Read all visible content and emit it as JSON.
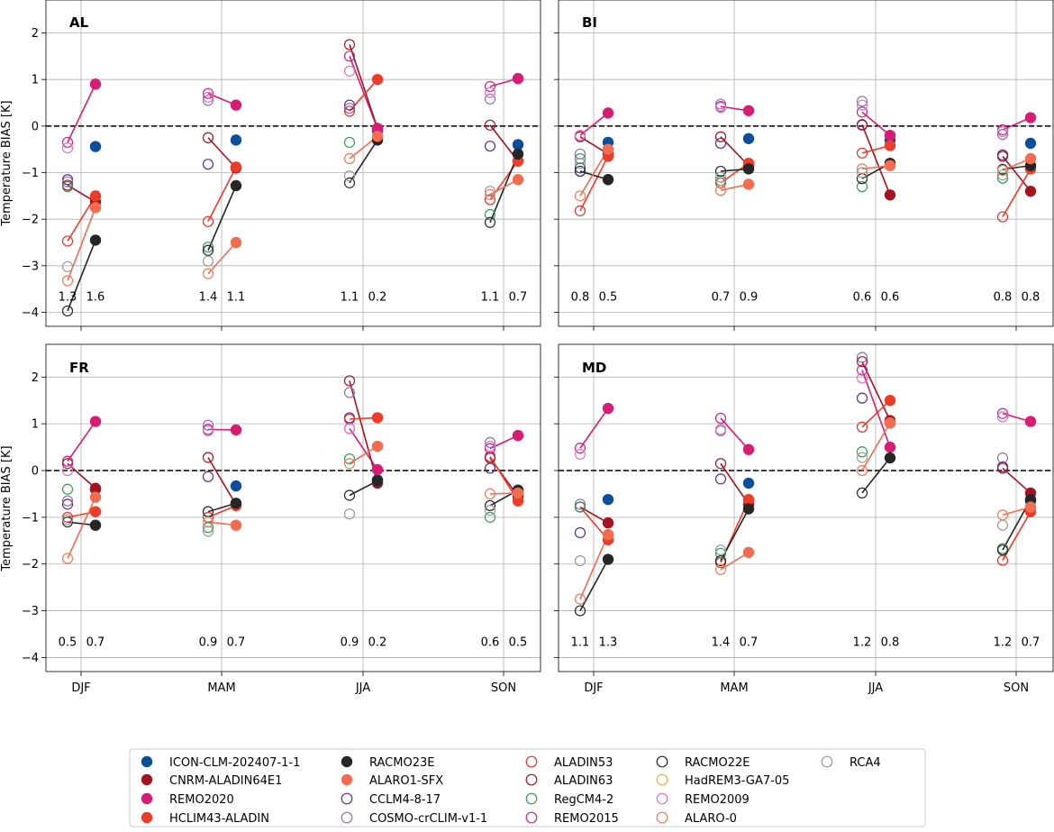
{
  "chart_data": {
    "type": "scatter",
    "ylabel": "Temperature BIAS [K]",
    "ylim": [
      -4.3,
      2.7
    ],
    "yticks": [
      -4,
      -3,
      -2,
      -1,
      0,
      1,
      2
    ],
    "grid": true,
    "reference_line": 0,
    "seasons": [
      "DJF",
      "MAM",
      "JJA",
      "SON"
    ],
    "legend_placement": "bottom-center",
    "models": [
      {
        "name": "ICON-CLM-202407-1-1",
        "color": "#0b4f9c",
        "filled": true
      },
      {
        "name": "CNRM-ALADIN64E1",
        "color": "#a31420",
        "filled": true
      },
      {
        "name": "REMO2020",
        "color": "#d81b74",
        "filled": true
      },
      {
        "name": "HCLIM43-ALADIN",
        "color": "#ee3c28",
        "filled": true
      },
      {
        "name": "RACMO23E",
        "color": "#262626",
        "filled": true
      },
      {
        "name": "ALARO1-SFX",
        "color": "#f56b4f",
        "filled": true
      },
      {
        "name": "CCLM4-8-17",
        "color": "#5a2a8a",
        "filled": false
      },
      {
        "name": "COSMO-crCLIM-v1-1",
        "color": "#8e6db3",
        "filled": false
      },
      {
        "name": "ALADIN53",
        "color": "#e0342c",
        "filled": false
      },
      {
        "name": "ALADIN63",
        "color": "#a31420",
        "filled": false
      },
      {
        "name": "RegCM4-2",
        "color": "#2e9e53",
        "filled": false
      },
      {
        "name": "REMO2015",
        "color": "#c7238a",
        "filled": false
      },
      {
        "name": "RACMO22E",
        "color": "#262626",
        "filled": false
      },
      {
        "name": "HadREM3-GA7-05",
        "color": "#f4a73d",
        "filled": false
      },
      {
        "name": "REMO2009",
        "color": "#e270c2",
        "filled": false
      },
      {
        "name": "ALARO-0",
        "color": "#f07a5a",
        "filled": false
      },
      {
        "name": "RCA4",
        "color": "#999999",
        "filled": false
      }
    ],
    "links": [
      {
        "from": "REMO2015",
        "to": "REMO2020"
      },
      {
        "from": "ALADIN63",
        "to": "CNRM-ALADIN64E1"
      },
      {
        "from": "ALADIN53",
        "to": "HCLIM43-ALADIN"
      },
      {
        "from": "RACMO22E",
        "to": "RACMO23E"
      },
      {
        "from": "ALARO-0",
        "to": "ALARO1-SFX"
      }
    ],
    "panels": [
      {
        "title": "AL",
        "stats": [
          [
            "1.3",
            "1.6"
          ],
          [
            "1.4",
            "1.1"
          ],
          [
            "1.1",
            "0.2"
          ],
          [
            "1.1",
            "0.7"
          ]
        ],
        "old": {
          "CCLM4-8-17": [
            -1.15,
            -0.82,
            0.45,
            -0.43
          ],
          "COSMO-crCLIM-v1-1": [
            -1.2,
            0.55,
            0.38,
            0.58
          ],
          "ALADIN53": [
            -2.47,
            -2.05,
            0.32,
            -1.58
          ],
          "ALADIN63": [
            -1.27,
            -0.25,
            1.75,
            0.02
          ],
          "RegCM4-2": [
            -1.3,
            -2.6,
            -0.35,
            -1.9
          ],
          "REMO2015": [
            -0.35,
            0.7,
            1.5,
            0.85
          ],
          "RACMO22E": [
            -3.97,
            -2.67,
            -1.22,
            -2.07
          ],
          "REMO2009": [
            -0.47,
            0.62,
            1.18,
            0.72
          ],
          "ALARO-0": [
            -3.32,
            -3.17,
            -0.7,
            -1.47
          ],
          "RCA4": [
            -3.02,
            -2.9,
            -1.07,
            -1.4
          ]
        },
        "new": {
          "ICON-CLM-202407-1-1": [
            -0.44,
            -0.3,
            -0.1,
            -0.4
          ],
          "CNRM-ALADIN64E1": [
            -1.63,
            -0.9,
            -0.05,
            -0.75
          ],
          "REMO2020": [
            0.9,
            0.45,
            -0.05,
            1.02
          ],
          "HCLIM43-ALADIN": [
            -1.5,
            -0.88,
            1.0,
            -0.75
          ],
          "RACMO23E": [
            -2.45,
            -1.28,
            -0.3,
            -0.6
          ],
          "ALARO1-SFX": [
            -1.75,
            -2.5,
            -0.22,
            -1.15
          ]
        }
      },
      {
        "title": "BI",
        "stats": [
          [
            "0.8",
            "0.5"
          ],
          [
            "0.7",
            "0.9"
          ],
          [
            "0.6",
            "0.6"
          ],
          [
            "0.8",
            "0.8"
          ]
        ],
        "old": {
          "CCLM4-8-17": [
            -0.9,
            -0.37,
            0.02,
            -0.62
          ],
          "COSMO-crCLIM-v1-1": [
            -0.6,
            0.47,
            0.53,
            -0.18
          ],
          "ALADIN53": [
            -1.82,
            -1.22,
            -0.58,
            -1.95
          ],
          "ALADIN63": [
            -0.23,
            -0.23,
            0.03,
            -0.65
          ],
          "RegCM4-2": [
            -0.7,
            -1.17,
            -1.3,
            -1.12
          ],
          "REMO2015": [
            -0.2,
            0.42,
            0.3,
            -0.08
          ],
          "RACMO22E": [
            -0.97,
            -0.97,
            -1.13,
            -0.93
          ],
          "REMO2009": [
            -0.2,
            0.4,
            0.45,
            -0.12
          ],
          "ALARO-0": [
            -1.5,
            -1.38,
            -0.92,
            -0.95
          ],
          "RCA4": [
            -0.8,
            -1.1,
            -1.0,
            -1.05
          ]
        },
        "new": {
          "ICON-CLM-202407-1-1": [
            -0.35,
            -0.27,
            -0.3,
            -0.37
          ],
          "CNRM-ALADIN64E1": [
            -0.6,
            -0.85,
            -1.48,
            -1.4
          ],
          "REMO2020": [
            0.28,
            0.33,
            -0.2,
            0.18
          ],
          "HCLIM43-ALADIN": [
            -0.65,
            -0.8,
            -0.42,
            -0.92
          ],
          "RACMO23E": [
            -1.15,
            -0.92,
            -0.8,
            -0.85
          ],
          "ALARO1-SFX": [
            -0.5,
            -1.25,
            -0.85,
            -0.7
          ]
        }
      },
      {
        "title": "FR",
        "stats": [
          [
            "0.5",
            "0.7"
          ],
          [
            "0.9",
            "0.7"
          ],
          [
            "0.9",
            "0.2"
          ],
          [
            "0.6",
            "0.5"
          ]
        ],
        "old": {
          "CCLM4-8-17": [
            -0.72,
            -0.13,
            1.13,
            0.05
          ],
          "COSMO-crCLIM-v1-1": [
            -0.65,
            0.97,
            1.67,
            0.6
          ],
          "ALADIN53": [
            -1.0,
            -1.0,
            1.1,
            0.3
          ],
          "ALADIN63": [
            0.15,
            0.28,
            1.92,
            0.27
          ],
          "RegCM4-2": [
            -0.4,
            -1.22,
            0.25,
            -1.0
          ],
          "REMO2015": [
            0.2,
            0.88,
            0.9,
            0.47
          ],
          "RACMO22E": [
            -1.1,
            -0.88,
            -0.53,
            -0.75
          ],
          "REMO2009": [
            0.0,
            0.85,
            0.9,
            0.52
          ],
          "ALARO-0": [
            -1.88,
            -1.1,
            0.15,
            -0.5
          ],
          "RCA4": [
            -1.05,
            -1.3,
            -0.93,
            -0.85
          ]
        },
        "new": {
          "ICON-CLM-202407-1-1": [
            -0.4,
            -0.33,
            -0.2,
            -0.42
          ],
          "CNRM-ALADIN64E1": [
            -0.38,
            -0.73,
            -0.27,
            -0.55
          ],
          "REMO2020": [
            1.05,
            0.87,
            0.02,
            0.75
          ],
          "HCLIM43-ALADIN": [
            -0.88,
            -0.75,
            1.13,
            -0.65
          ],
          "RACMO23E": [
            -1.17,
            -0.7,
            -0.22,
            -0.42
          ],
          "ALARO1-SFX": [
            -0.57,
            -1.17,
            0.52,
            -0.48
          ]
        }
      },
      {
        "title": "MD",
        "stats": [
          [
            "1.1",
            "1.3"
          ],
          [
            "1.4",
            "0.7"
          ],
          [
            "1.2",
            "0.8"
          ],
          [
            "1.2",
            "0.7"
          ]
        ],
        "old": {
          "CCLM4-8-17": [
            -1.33,
            -0.18,
            1.55,
            0.08
          ],
          "COSMO-crCLIM-v1-1": [
            -0.72,
            0.85,
            2.42,
            0.27
          ],
          "ALADIN53": [
            -0.78,
            -1.97,
            0.93,
            -1.92
          ],
          "ALADIN63": [
            -0.78,
            0.15,
            2.33,
            0.05
          ],
          "RegCM4-2": [
            -0.78,
            -1.77,
            0.4,
            -1.67
          ],
          "REMO2015": [
            0.48,
            1.12,
            2.15,
            1.22
          ],
          "RACMO22E": [
            -3.0,
            -1.93,
            -0.48,
            -1.7
          ],
          "REMO2009": [
            0.35,
            0.88,
            1.98,
            1.15
          ],
          "ALARO-0": [
            -2.75,
            -2.12,
            0.0,
            -0.95
          ],
          "RCA4": [
            -1.93,
            -1.7,
            0.28,
            -1.17
          ]
        },
        "new": {
          "ICON-CLM-202407-1-1": [
            -0.62,
            -0.27,
            1.02,
            -0.65
          ],
          "CNRM-ALADIN64E1": [
            -1.12,
            -0.72,
            1.07,
            -0.48
          ],
          "REMO2020": [
            1.33,
            0.45,
            0.5,
            1.05
          ],
          "HCLIM43-ALADIN": [
            -1.48,
            -0.62,
            1.5,
            -0.88
          ],
          "RACMO23E": [
            -1.9,
            -0.82,
            0.27,
            -0.62
          ],
          "ALARO1-SFX": [
            -1.37,
            -1.75,
            1.02,
            -0.78
          ]
        }
      }
    ]
  }
}
